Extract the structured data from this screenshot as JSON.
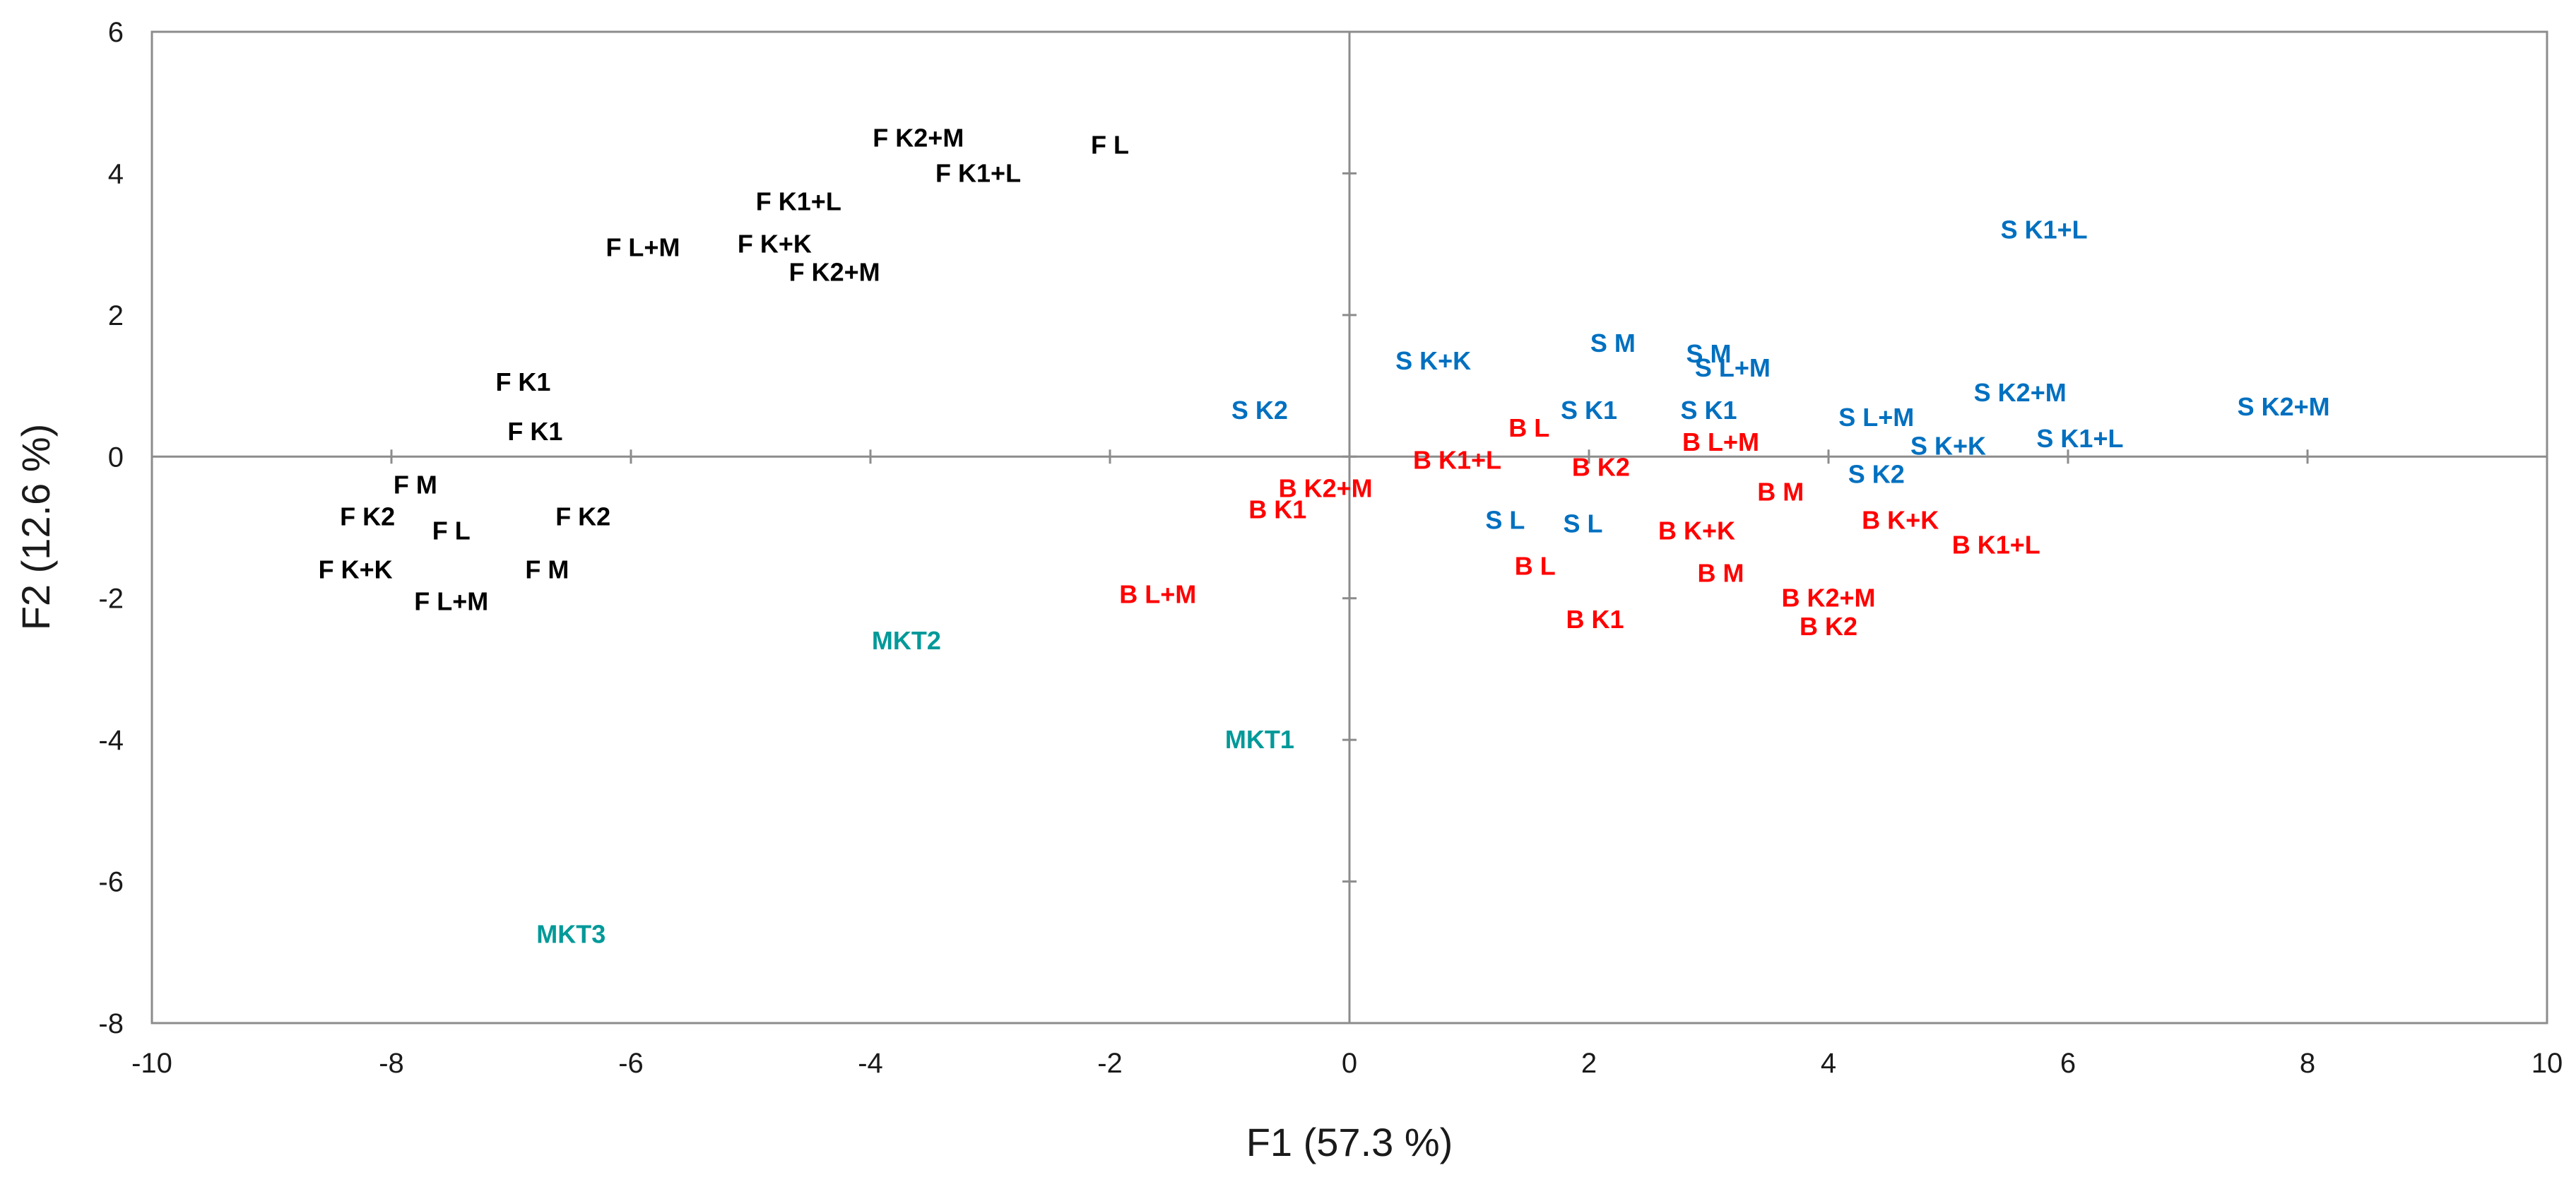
{
  "chart_data": {
    "type": "scatter",
    "title": "",
    "xlabel": "F1 (57.3 %)",
    "ylabel": "F2 (12.6 %)",
    "xlim": [
      -10,
      10
    ],
    "ylim": [
      -8,
      6
    ],
    "xticks": [
      -10,
      -8,
      -6,
      -4,
      -2,
      0,
      2,
      4,
      6,
      8,
      10
    ],
    "yticks": [
      -8,
      -6,
      -4,
      -2,
      0,
      2,
      4,
      6
    ],
    "grid": false,
    "zero_lines": true,
    "colors": {
      "F": "#000000",
      "S": "#0070c0",
      "B": "#ff0000",
      "MKT": "#009999"
    },
    "series": [
      {
        "name": "F",
        "points": [
          {
            "label": "F K2+M",
            "x": -3.6,
            "y": 4.5
          },
          {
            "label": "F L",
            "x": -2.0,
            "y": 4.4
          },
          {
            "label": "F K1+L",
            "x": -3.1,
            "y": 4.0
          },
          {
            "label": "F K1+L",
            "x": -4.6,
            "y": 3.6
          },
          {
            "label": "F L+M",
            "x": -5.9,
            "y": 2.95
          },
          {
            "label": "F K+K",
            "x": -4.8,
            "y": 3.0
          },
          {
            "label": "F K2+M",
            "x": -4.3,
            "y": 2.6
          },
          {
            "label": "F K1",
            "x": -6.9,
            "y": 1.05
          },
          {
            "label": "F K1",
            "x": -6.8,
            "y": 0.35
          },
          {
            "label": "F M",
            "x": -7.8,
            "y": -0.4
          },
          {
            "label": "F K2",
            "x": -8.2,
            "y": -0.85
          },
          {
            "label": "F L",
            "x": -7.5,
            "y": -1.05
          },
          {
            "label": "F K2",
            "x": -6.4,
            "y": -0.85
          },
          {
            "label": "F K+K",
            "x": -8.3,
            "y": -1.6
          },
          {
            "label": "F M",
            "x": -6.7,
            "y": -1.6
          },
          {
            "label": "F L+M",
            "x": -7.5,
            "y": -2.05
          }
        ]
      },
      {
        "name": "S",
        "points": [
          {
            "label": "S K1+L",
            "x": 5.8,
            "y": 3.2
          },
          {
            "label": "S M",
            "x": 2.2,
            "y": 1.6
          },
          {
            "label": "S M",
            "x": 3.0,
            "y": 1.45
          },
          {
            "label": "S L+M",
            "x": 3.2,
            "y": 1.25
          },
          {
            "label": "S K+K",
            "x": 0.7,
            "y": 1.35
          },
          {
            "label": "S K2+M",
            "x": 5.6,
            "y": 0.9
          },
          {
            "label": "S K2+M",
            "x": 7.8,
            "y": 0.7
          },
          {
            "label": "S K2",
            "x": -0.75,
            "y": 0.65
          },
          {
            "label": "S K1",
            "x": 2.0,
            "y": 0.65
          },
          {
            "label": "S K1",
            "x": 3.0,
            "y": 0.65
          },
          {
            "label": "S L+M",
            "x": 4.4,
            "y": 0.55
          },
          {
            "label": "S K+K",
            "x": 5.0,
            "y": 0.15
          },
          {
            "label": "S K1+L",
            "x": 6.1,
            "y": 0.25
          },
          {
            "label": "S K2",
            "x": 4.4,
            "y": -0.25
          },
          {
            "label": "S L",
            "x": 1.3,
            "y": -0.9
          },
          {
            "label": "S L",
            "x": 1.95,
            "y": -0.95
          }
        ]
      },
      {
        "name": "B",
        "points": [
          {
            "label": "B L",
            "x": 1.5,
            "y": 0.4
          },
          {
            "label": "B K1+L",
            "x": 0.9,
            "y": -0.05
          },
          {
            "label": "B L+M",
            "x": 3.1,
            "y": 0.2
          },
          {
            "label": "B K2",
            "x": 2.1,
            "y": -0.15
          },
          {
            "label": "B K2+M",
            "x": -0.2,
            "y": -0.45
          },
          {
            "label": "B K1",
            "x": -0.6,
            "y": -0.75
          },
          {
            "label": "B M",
            "x": 3.6,
            "y": -0.5
          },
          {
            "label": "B K+K",
            "x": 2.9,
            "y": -1.05
          },
          {
            "label": "B K+K",
            "x": 4.6,
            "y": -0.9
          },
          {
            "label": "B K1+L",
            "x": 5.4,
            "y": -1.25
          },
          {
            "label": "B L",
            "x": 1.55,
            "y": -1.55
          },
          {
            "label": "B M",
            "x": 3.1,
            "y": -1.65
          },
          {
            "label": "B L+M",
            "x": -1.6,
            "y": -1.95
          },
          {
            "label": "B K2+M",
            "x": 4.0,
            "y": -2.0
          },
          {
            "label": "B K1",
            "x": 2.05,
            "y": -2.3
          },
          {
            "label": "B K2",
            "x": 4.0,
            "y": -2.4
          }
        ]
      },
      {
        "name": "MKT",
        "points": [
          {
            "label": "MKT2",
            "x": -3.7,
            "y": -2.6
          },
          {
            "label": "MKT1",
            "x": -0.75,
            "y": -4.0
          },
          {
            "label": "MKT3",
            "x": -6.5,
            "y": -6.75
          }
        ]
      }
    ]
  }
}
